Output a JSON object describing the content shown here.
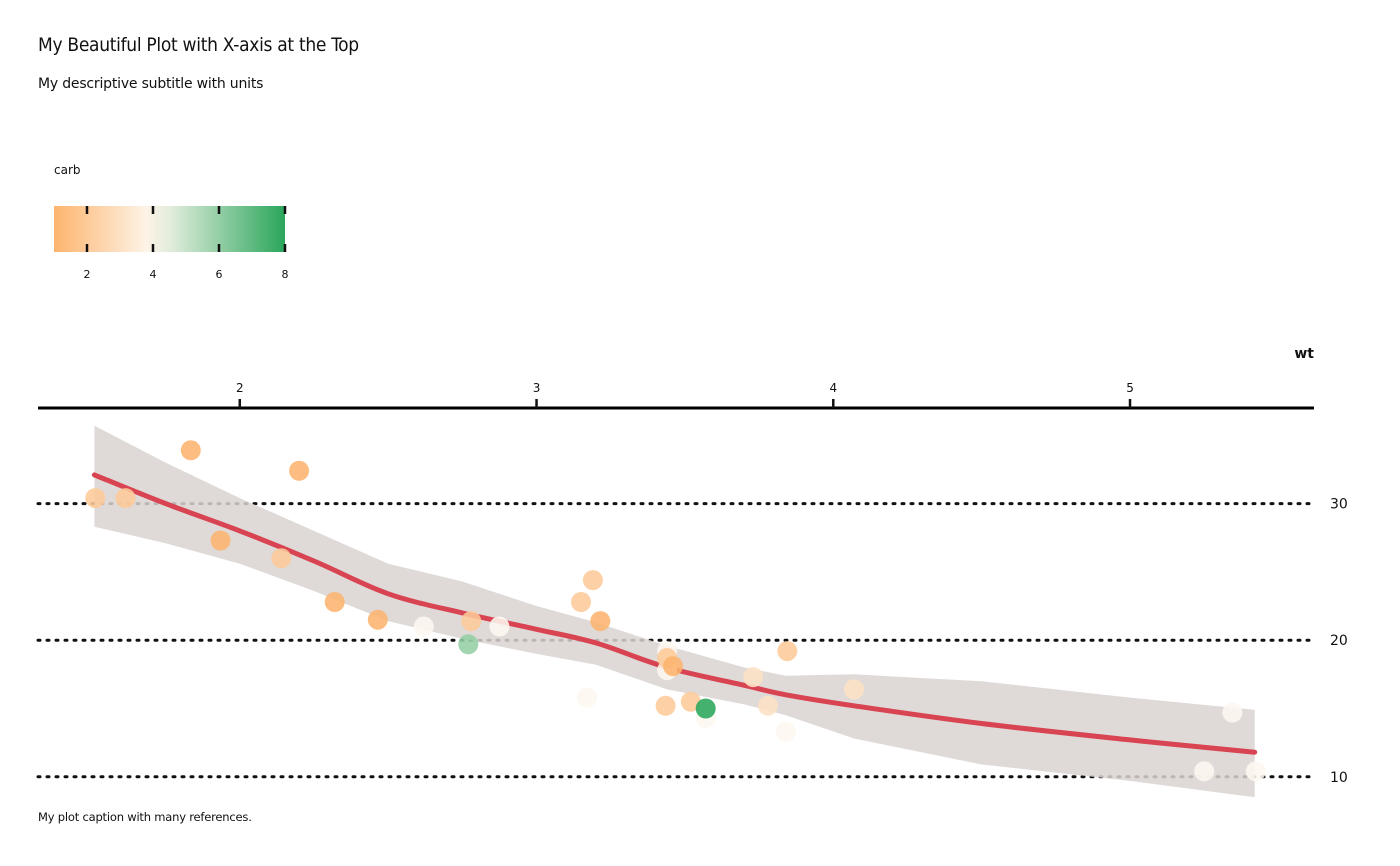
{
  "title": "My Beautiful Plot with X-axis at the Top",
  "subtitle": "My descriptive subtitle with units",
  "caption": "My plot caption with many references.",
  "chart_data": {
    "type": "scatter",
    "x_axis_position": "top",
    "y_axis_position": "right",
    "xlabel": "wt",
    "ylabel": "",
    "xlim": [
      1.32,
      5.62
    ],
    "ylim": [
      8.3,
      37.0
    ],
    "x_ticks": [
      2,
      3,
      4,
      5
    ],
    "y_ticks": [
      10,
      20,
      30
    ],
    "grid": "horizontal dotted major lines only",
    "legend": {
      "title": "carb",
      "type": "colorbar",
      "placement": "top-left",
      "range": [
        1,
        8
      ],
      "breaks": [
        2,
        4,
        6,
        8
      ],
      "palette": {
        "low": "#fdb46e",
        "mid": "#fdf7ef",
        "high": "#2aa65b",
        "midpoint": 4
      }
    },
    "colors": {
      "smooth_line": "#d84452",
      "ribbon": "#d9d3d1",
      "axis": "#000000"
    },
    "smooth": {
      "method": "loess",
      "fit": [
        [
          1.51,
          32.1
        ],
        [
          1.75,
          30.0
        ],
        [
          2.0,
          28.0
        ],
        [
          2.25,
          25.8
        ],
        [
          2.5,
          23.4
        ],
        [
          2.75,
          22.0
        ],
        [
          3.0,
          20.8
        ],
        [
          3.2,
          19.8
        ],
        [
          3.44,
          18.0
        ],
        [
          3.7,
          16.7
        ],
        [
          3.84,
          16.0
        ],
        [
          4.07,
          15.2
        ],
        [
          4.5,
          13.9
        ],
        [
          5.0,
          12.7
        ],
        [
          5.42,
          11.8
        ]
      ],
      "band_upper": [
        [
          1.51,
          35.7
        ],
        [
          1.75,
          33.0
        ],
        [
          2.0,
          30.4
        ],
        [
          2.25,
          28.0
        ],
        [
          2.5,
          25.6
        ],
        [
          2.75,
          24.3
        ],
        [
          3.0,
          22.5
        ],
        [
          3.2,
          21.3
        ],
        [
          3.44,
          19.6
        ],
        [
          3.7,
          18.0
        ],
        [
          3.84,
          17.4
        ],
        [
          4.07,
          17.5
        ],
        [
          4.5,
          17.0
        ],
        [
          5.0,
          15.8
        ],
        [
          5.42,
          14.9
        ]
      ],
      "band_lower": [
        [
          1.51,
          28.3
        ],
        [
          1.75,
          27.1
        ],
        [
          2.0,
          25.6
        ],
        [
          2.25,
          23.6
        ],
        [
          2.5,
          21.4
        ],
        [
          2.75,
          20.1
        ],
        [
          3.0,
          19.0
        ],
        [
          3.2,
          18.2
        ],
        [
          3.44,
          16.4
        ],
        [
          3.7,
          15.3
        ],
        [
          3.84,
          14.5
        ],
        [
          4.07,
          12.8
        ],
        [
          4.5,
          10.9
        ],
        [
          5.0,
          9.7
        ],
        [
          5.42,
          8.5
        ]
      ]
    },
    "points": [
      {
        "x": 2.62,
        "y": 21.0,
        "carb": 4
      },
      {
        "x": 2.875,
        "y": 21.0,
        "carb": 4
      },
      {
        "x": 2.32,
        "y": 22.8,
        "carb": 1
      },
      {
        "x": 3.215,
        "y": 21.4,
        "carb": 1
      },
      {
        "x": 3.44,
        "y": 18.7,
        "carb": 2
      },
      {
        "x": 3.46,
        "y": 18.1,
        "carb": 1
      },
      {
        "x": 3.57,
        "y": 14.3,
        "carb": 4
      },
      {
        "x": 3.19,
        "y": 24.4,
        "carb": 2
      },
      {
        "x": 3.15,
        "y": 22.8,
        "carb": 2
      },
      {
        "x": 3.44,
        "y": 19.2,
        "carb": 4
      },
      {
        "x": 3.44,
        "y": 17.8,
        "carb": 4
      },
      {
        "x": 4.07,
        "y": 16.4,
        "carb": 3
      },
      {
        "x": 3.73,
        "y": 17.3,
        "carb": 3
      },
      {
        "x": 3.78,
        "y": 15.2,
        "carb": 3
      },
      {
        "x": 5.25,
        "y": 10.4,
        "carb": 4
      },
      {
        "x": 5.424,
        "y": 10.4,
        "carb": 4
      },
      {
        "x": 5.345,
        "y": 14.7,
        "carb": 4
      },
      {
        "x": 2.2,
        "y": 32.4,
        "carb": 1
      },
      {
        "x": 1.615,
        "y": 30.4,
        "carb": 2
      },
      {
        "x": 1.835,
        "y": 33.9,
        "carb": 1
      },
      {
        "x": 2.465,
        "y": 21.5,
        "carb": 1
      },
      {
        "x": 3.52,
        "y": 15.5,
        "carb": 2
      },
      {
        "x": 3.435,
        "y": 15.2,
        "carb": 2
      },
      {
        "x": 3.84,
        "y": 13.3,
        "carb": 4
      },
      {
        "x": 3.845,
        "y": 19.2,
        "carb": 2
      },
      {
        "x": 1.935,
        "y": 27.3,
        "carb": 1
      },
      {
        "x": 2.14,
        "y": 26.0,
        "carb": 2
      },
      {
        "x": 1.513,
        "y": 30.4,
        "carb": 2
      },
      {
        "x": 3.17,
        "y": 15.8,
        "carb": 4
      },
      {
        "x": 2.77,
        "y": 19.7,
        "carb": 6
      },
      {
        "x": 3.57,
        "y": 15.0,
        "carb": 8
      },
      {
        "x": 2.78,
        "y": 21.4,
        "carb": 2
      }
    ]
  }
}
